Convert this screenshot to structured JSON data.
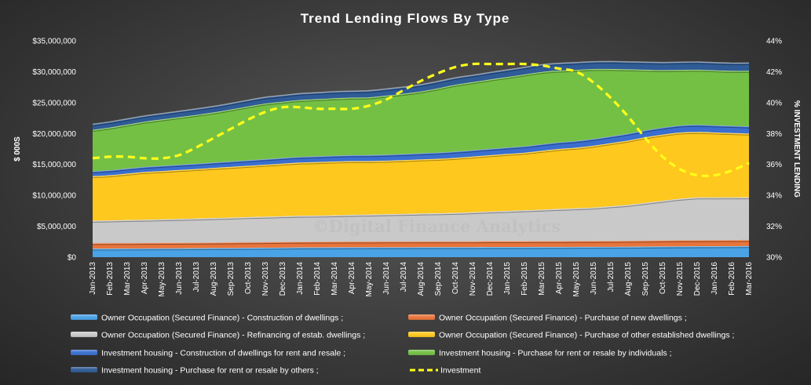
{
  "watermark": "©Digital Finance Analytics",
  "colors": {
    "owner_construction": "#4aa3e6",
    "owner_new": "#e8743b",
    "owner_refinancing": "#c9c9c9",
    "owner_established": "#ffc81e",
    "inv_construction": "#3a6fd0",
    "inv_individuals": "#74c045",
    "inv_others": "#2f5b96",
    "investment_line": "#ffff1a"
  },
  "chart_data": {
    "type": "area",
    "stacked": true,
    "title": "Trend  Lending  Flows  By  Type",
    "ylabel": "$ 000S",
    "y2label": "% INVESTMENT LENDING",
    "ylim": [
      0,
      35000000
    ],
    "y_ticks": [
      0,
      5000000,
      10000000,
      15000000,
      20000000,
      25000000,
      30000000,
      35000000
    ],
    "y_tick_labels": [
      "$0",
      "$5,000,000",
      "$10,000,000",
      "$15,000,000",
      "$20,000,000",
      "$25,000,000",
      "$30,000,000",
      "$35,000,000"
    ],
    "y2lim": [
      30,
      44
    ],
    "y2_ticks": [
      30,
      32,
      34,
      36,
      38,
      40,
      42,
      44
    ],
    "y2_tick_labels": [
      "30%",
      "32%",
      "34%",
      "36%",
      "38%",
      "40%",
      "42%",
      "44%"
    ],
    "legend_position": "bottom",
    "grid": false,
    "categories": [
      "Jan-2013",
      "Feb-2013",
      "Mar-2013",
      "Apr-2013",
      "May-2013",
      "Jun-2013",
      "Jul-2013",
      "Aug-2013",
      "Sep-2013",
      "Oct-2013",
      "Nov-2013",
      "Dec-2013",
      "Jan-2014",
      "Feb-2014",
      "Mar-2014",
      "Apr-2014",
      "May-2014",
      "Jun-2014",
      "Jul-2014",
      "Aug-2014",
      "Sep-2014",
      "Oct-2014",
      "Nov-2014",
      "Dec-2014",
      "Jan-2015",
      "Feb-2015",
      "Mar-2015",
      "Apr-2015",
      "May-2015",
      "Jun-2015",
      "Jul-2015",
      "Aug-2015",
      "Sep-2015",
      "Oct-2015",
      "Nov-2015",
      "Dec-2015",
      "Jan-2016",
      "Feb-2016",
      "Mar-2016"
    ],
    "series": [
      {
        "name": "Owner Occupation (Secured Finance) - Construction of dwellings ;",
        "color_key": "owner_construction",
        "values": [
          1400000,
          1410000,
          1420000,
          1430000,
          1440000,
          1450000,
          1460000,
          1480000,
          1500000,
          1520000,
          1540000,
          1560000,
          1580000,
          1590000,
          1600000,
          1610000,
          1610000,
          1620000,
          1620000,
          1630000,
          1630000,
          1640000,
          1640000,
          1650000,
          1650000,
          1650000,
          1660000,
          1660000,
          1670000,
          1680000,
          1690000,
          1700000,
          1720000,
          1740000,
          1760000,
          1770000,
          1780000,
          1790000,
          1800000
        ]
      },
      {
        "name": "Owner Occupation (Secured Finance) - Purchase of new dwellings ;",
        "color_key": "owner_new",
        "values": [
          900000,
          900000,
          900000,
          900000,
          900000,
          900000,
          900000,
          910000,
          910000,
          920000,
          920000,
          930000,
          930000,
          930000,
          930000,
          940000,
          940000,
          940000,
          940000,
          940000,
          940000,
          940000,
          940000,
          950000,
          950000,
          950000,
          950000,
          950000,
          950000,
          960000,
          960000,
          970000,
          980000,
          990000,
          1000000,
          1000000,
          1000000,
          1000000,
          1000000
        ]
      },
      {
        "name": "Owner Occupation (Secured Finance) - Refinancing of estab. dwellings ;",
        "color_key": "owner_refinancing",
        "values": [
          3600000,
          3650000,
          3700000,
          3750000,
          3800000,
          3850000,
          3900000,
          3950000,
          4000000,
          4050000,
          4100000,
          4150000,
          4200000,
          4220000,
          4250000,
          4300000,
          4350000,
          4400000,
          4450000,
          4500000,
          4550000,
          4600000,
          4700000,
          4800000,
          4900000,
          5000000,
          5100000,
          5200000,
          5300000,
          5400000,
          5600000,
          5800000,
          6100000,
          6400000,
          6700000,
          6900000,
          6900000,
          6900000,
          6900000
        ]
      },
      {
        "name": "Owner Occupation (Secured Finance) - Purchase of other established dwellings ;",
        "color_key": "owner_established",
        "values": [
          7200000,
          7300000,
          7500000,
          7700000,
          7800000,
          7900000,
          8000000,
          8100000,
          8200000,
          8300000,
          8400000,
          8500000,
          8600000,
          8650000,
          8700000,
          8700000,
          8650000,
          8650000,
          8700000,
          8750000,
          8800000,
          8900000,
          9000000,
          9100000,
          9200000,
          9300000,
          9500000,
          9700000,
          9800000,
          10000000,
          10200000,
          10400000,
          10600000,
          10700000,
          10700000,
          10600000,
          10500000,
          10400000,
          10300000
        ]
      },
      {
        "name": "Investment housing - Construction of dwellings for rent and resale ;",
        "color_key": "inv_construction",
        "values": [
          800000,
          810000,
          820000,
          830000,
          840000,
          850000,
          860000,
          870000,
          880000,
          890000,
          900000,
          910000,
          920000,
          930000,
          940000,
          950000,
          960000,
          970000,
          980000,
          990000,
          1000000,
          1010000,
          1020000,
          1030000,
          1040000,
          1050000,
          1060000,
          1070000,
          1080000,
          1090000,
          1100000,
          1110000,
          1120000,
          1130000,
          1140000,
          1150000,
          1150000,
          1150000,
          1150000
        ]
      },
      {
        "name": "Investment housing - Purchase for rent or resale by individuals ;",
        "color_key": "inv_individuals",
        "values": [
          6700000,
          6900000,
          7100000,
          7300000,
          7500000,
          7700000,
          7900000,
          8100000,
          8400000,
          8700000,
          9000000,
          9100000,
          9200000,
          9250000,
          9300000,
          9300000,
          9350000,
          9550000,
          9750000,
          10000000,
          10400000,
          10800000,
          11000000,
          11200000,
          11400000,
          11600000,
          11700000,
          11600000,
          11500000,
          11300000,
          10900000,
          10400000,
          9800000,
          9300000,
          9000000,
          8900000,
          8900000,
          8900000,
          9000000
        ]
      },
      {
        "name": "Investment housing - Purchase for rent or resale by others ;",
        "color_key": "inv_others",
        "values": [
          900000,
          910000,
          920000,
          930000,
          940000,
          950000,
          960000,
          970000,
          980000,
          990000,
          1000000,
          1010000,
          1020000,
          1030000,
          1040000,
          1050000,
          1060000,
          1070000,
          1080000,
          1090000,
          1100000,
          1110000,
          1120000,
          1130000,
          1140000,
          1150000,
          1160000,
          1170000,
          1180000,
          1190000,
          1200000,
          1210000,
          1220000,
          1230000,
          1240000,
          1250000,
          1250000,
          1250000,
          1250000
        ]
      }
    ],
    "line_series": {
      "name": "Investment",
      "axis": "right",
      "style": "dashed",
      "color_key": "investment_line",
      "values": [
        36.4,
        36.5,
        36.5,
        36.4,
        36.4,
        36.6,
        37.1,
        37.7,
        38.3,
        38.9,
        39.4,
        39.7,
        39.7,
        39.6,
        39.6,
        39.6,
        39.8,
        40.2,
        40.8,
        41.4,
        41.9,
        42.3,
        42.5,
        42.5,
        42.5,
        42.5,
        42.4,
        42.2,
        42.0,
        41.3,
        40.3,
        39.1,
        37.7,
        36.5,
        35.7,
        35.3,
        35.3,
        35.6,
        36.1
      ]
    }
  }
}
